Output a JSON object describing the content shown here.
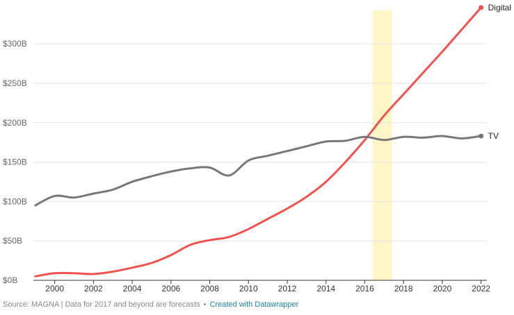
{
  "chart_data": {
    "type": "line",
    "title": "",
    "xlabel": "",
    "ylabel": "",
    "xlim": [
      1998.9,
      2022.3
    ],
    "ylim": [
      0,
      345
    ],
    "xticks": [
      {
        "value": 2000,
        "label": "2000"
      },
      {
        "value": 2002,
        "label": "2002"
      },
      {
        "value": 2004,
        "label": "2004"
      },
      {
        "value": 2006,
        "label": "2006"
      },
      {
        "value": 2008,
        "label": "2008"
      },
      {
        "value": 2010,
        "label": "2010"
      },
      {
        "value": 2012,
        "label": "2012"
      },
      {
        "value": 2014,
        "label": "2014"
      },
      {
        "value": 2016,
        "label": "2016"
      },
      {
        "value": 2018,
        "label": "2018"
      },
      {
        "value": 2020,
        "label": "2020"
      },
      {
        "value": 2022,
        "label": "2022"
      }
    ],
    "yticks": [
      {
        "value": 0,
        "label": "$0B"
      },
      {
        "value": 50,
        "label": "$50B"
      },
      {
        "value": 100,
        "label": "$100B"
      },
      {
        "value": 150,
        "label": "$150B"
      },
      {
        "value": 200,
        "label": "$200B"
      },
      {
        "value": 250,
        "label": "$250B"
      },
      {
        "value": 300,
        "label": "$300B"
      }
    ],
    "grid": true,
    "highlight_band": {
      "x0": 2016.4,
      "x1": 2017.4,
      "color": "#fff5c6"
    },
    "series": [
      {
        "name": "Digital",
        "color": "#f0524d",
        "x": [
          1999,
          2000,
          2001,
          2002,
          2003,
          2004,
          2005,
          2006,
          2007,
          2008,
          2009,
          2010,
          2011,
          2012,
          2013,
          2014,
          2015,
          2016,
          2017,
          2018,
          2019,
          2020,
          2021,
          2022
        ],
        "y": [
          5,
          9,
          9,
          8,
          11,
          16,
          22,
          32,
          45,
          51,
          55,
          65,
          78,
          91,
          106,
          125,
          150,
          178,
          209,
          236,
          263,
          290,
          318,
          346
        ]
      },
      {
        "name": "TV",
        "color": "#777777",
        "x": [
          1999,
          2000,
          2001,
          2002,
          2003,
          2004,
          2005,
          2006,
          2007,
          2008,
          2009,
          2010,
          2011,
          2012,
          2013,
          2014,
          2015,
          2016,
          2017,
          2018,
          2019,
          2020,
          2021,
          2022
        ],
        "y": [
          95,
          107,
          105,
          110,
          115,
          125,
          132,
          138,
          142,
          143,
          133,
          152,
          158,
          164,
          170,
          176,
          177,
          182,
          178,
          182,
          181,
          183,
          180,
          183
        ]
      }
    ]
  },
  "footer": {
    "source": "Source: MAGNA | Data for 2017 and beyond are forecasts",
    "separator": "•",
    "credit": "Created with Datawrapper"
  }
}
